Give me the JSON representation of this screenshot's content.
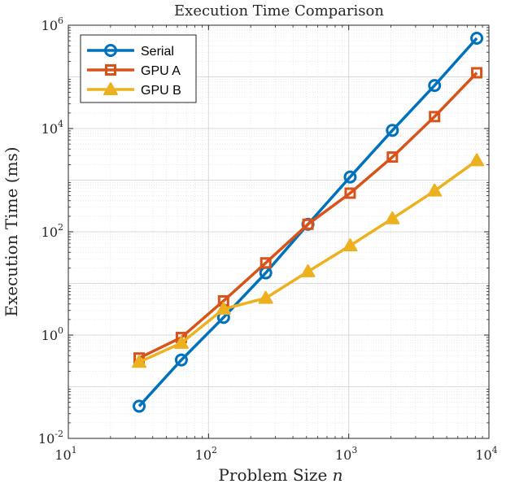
{
  "chart_data": {
    "type": "line",
    "title": "Execution Time Comparison",
    "xlabel_text": "Problem Size",
    "xlabel_var": "n",
    "ylabel": "Execution Time (ms)",
    "xscale": "log",
    "yscale": "log",
    "xlim": [
      10,
      10000
    ],
    "ylim": [
      0.01,
      1000000
    ],
    "x_ticks": [
      10,
      100,
      1000,
      10000
    ],
    "y_ticks": [
      0.01,
      1,
      100,
      10000,
      1000000
    ],
    "grid": true,
    "minor_grid": true,
    "legend_position": "top-left",
    "x": [
      32,
      64,
      128,
      256,
      512,
      1024,
      2048,
      4096,
      8192
    ],
    "series": [
      {
        "name": "Serial",
        "color": "#0072BD",
        "marker": "circle",
        "values": [
          0.042,
          0.33,
          2.2,
          16,
          140,
          1150,
          9200,
          68000,
          560000
        ]
      },
      {
        "name": "GPU A",
        "color": "#D95319",
        "marker": "square",
        "values": [
          0.36,
          0.9,
          4.6,
          25,
          140,
          560,
          2800,
          17000,
          120000
        ]
      },
      {
        "name": "GPU B",
        "color": "#EDB120",
        "marker": "triangle",
        "values": [
          0.3,
          0.7,
          3.2,
          5.2,
          17,
          54,
          180,
          620,
          2400
        ]
      }
    ]
  }
}
